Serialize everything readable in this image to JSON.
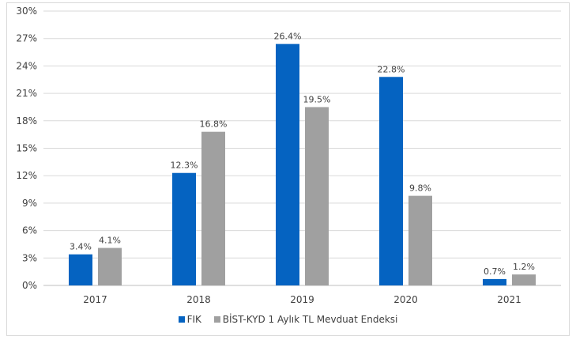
{
  "chart_data": {
    "type": "bar",
    "categories": [
      "2017",
      "2018",
      "2019",
      "2020",
      "2021"
    ],
    "series": [
      {
        "name": "FIK",
        "values": [
          3.4,
          12.3,
          26.4,
          22.8,
          0.7
        ],
        "labels": [
          "3.4%",
          "12.3%",
          "26.4%",
          "22.8%",
          "0.7%"
        ],
        "color": "#0563C1"
      },
      {
        "name": "BİST-KYD 1 Aylık TL Mevduat Endeksi",
        "values": [
          4.1,
          16.8,
          19.5,
          9.8,
          1.2
        ],
        "labels": [
          "4.1%",
          "16.8%",
          "19.5%",
          "9.8%",
          "1.2%"
        ],
        "color": "#A0A0A0"
      }
    ],
    "ylim": [
      0,
      30
    ],
    "yticks": [
      "0%",
      "3%",
      "6%",
      "9%",
      "12%",
      "15%",
      "18%",
      "21%",
      "24%",
      "27%",
      "30%"
    ],
    "grid": true,
    "legend_position": "bottom"
  }
}
